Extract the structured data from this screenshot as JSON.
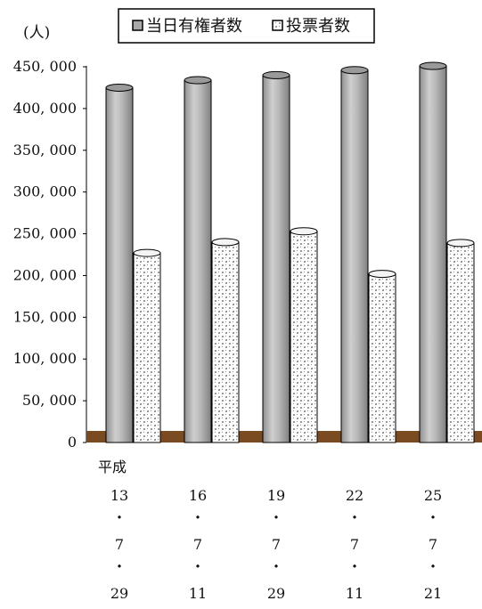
{
  "chart_data": {
    "type": "bar",
    "unit_label": "(人)",
    "era_label": "平成",
    "categories": [
      [
        "13",
        "・",
        "7",
        "・",
        "29"
      ],
      [
        "16",
        "・",
        "7",
        "・",
        "11"
      ],
      [
        "19",
        "・",
        "7",
        "・",
        "29"
      ],
      [
        "22",
        "・",
        "7",
        "・",
        "11"
      ],
      [
        "25",
        "・",
        "7",
        "・",
        "21"
      ]
    ],
    "series": [
      {
        "name": "当日有権者数",
        "values": [
          425000,
          434000,
          440000,
          446000,
          451000
        ],
        "color": "#a9a9a9"
      },
      {
        "name": "投票者数",
        "values": [
          227000,
          240000,
          253000,
          202000,
          239000
        ],
        "color": "#ffffff"
      }
    ],
    "ylim": [
      0,
      450000
    ],
    "ytick_step": 50000,
    "yticks": [
      "0",
      "50, 000",
      "100, 000",
      "150, 000",
      "200, 000",
      "250, 000",
      "300, 000",
      "350, 000",
      "400, 000",
      "450, 000"
    ],
    "legend_position": "top",
    "floor_color": "#7a4a21",
    "grid": false
  }
}
